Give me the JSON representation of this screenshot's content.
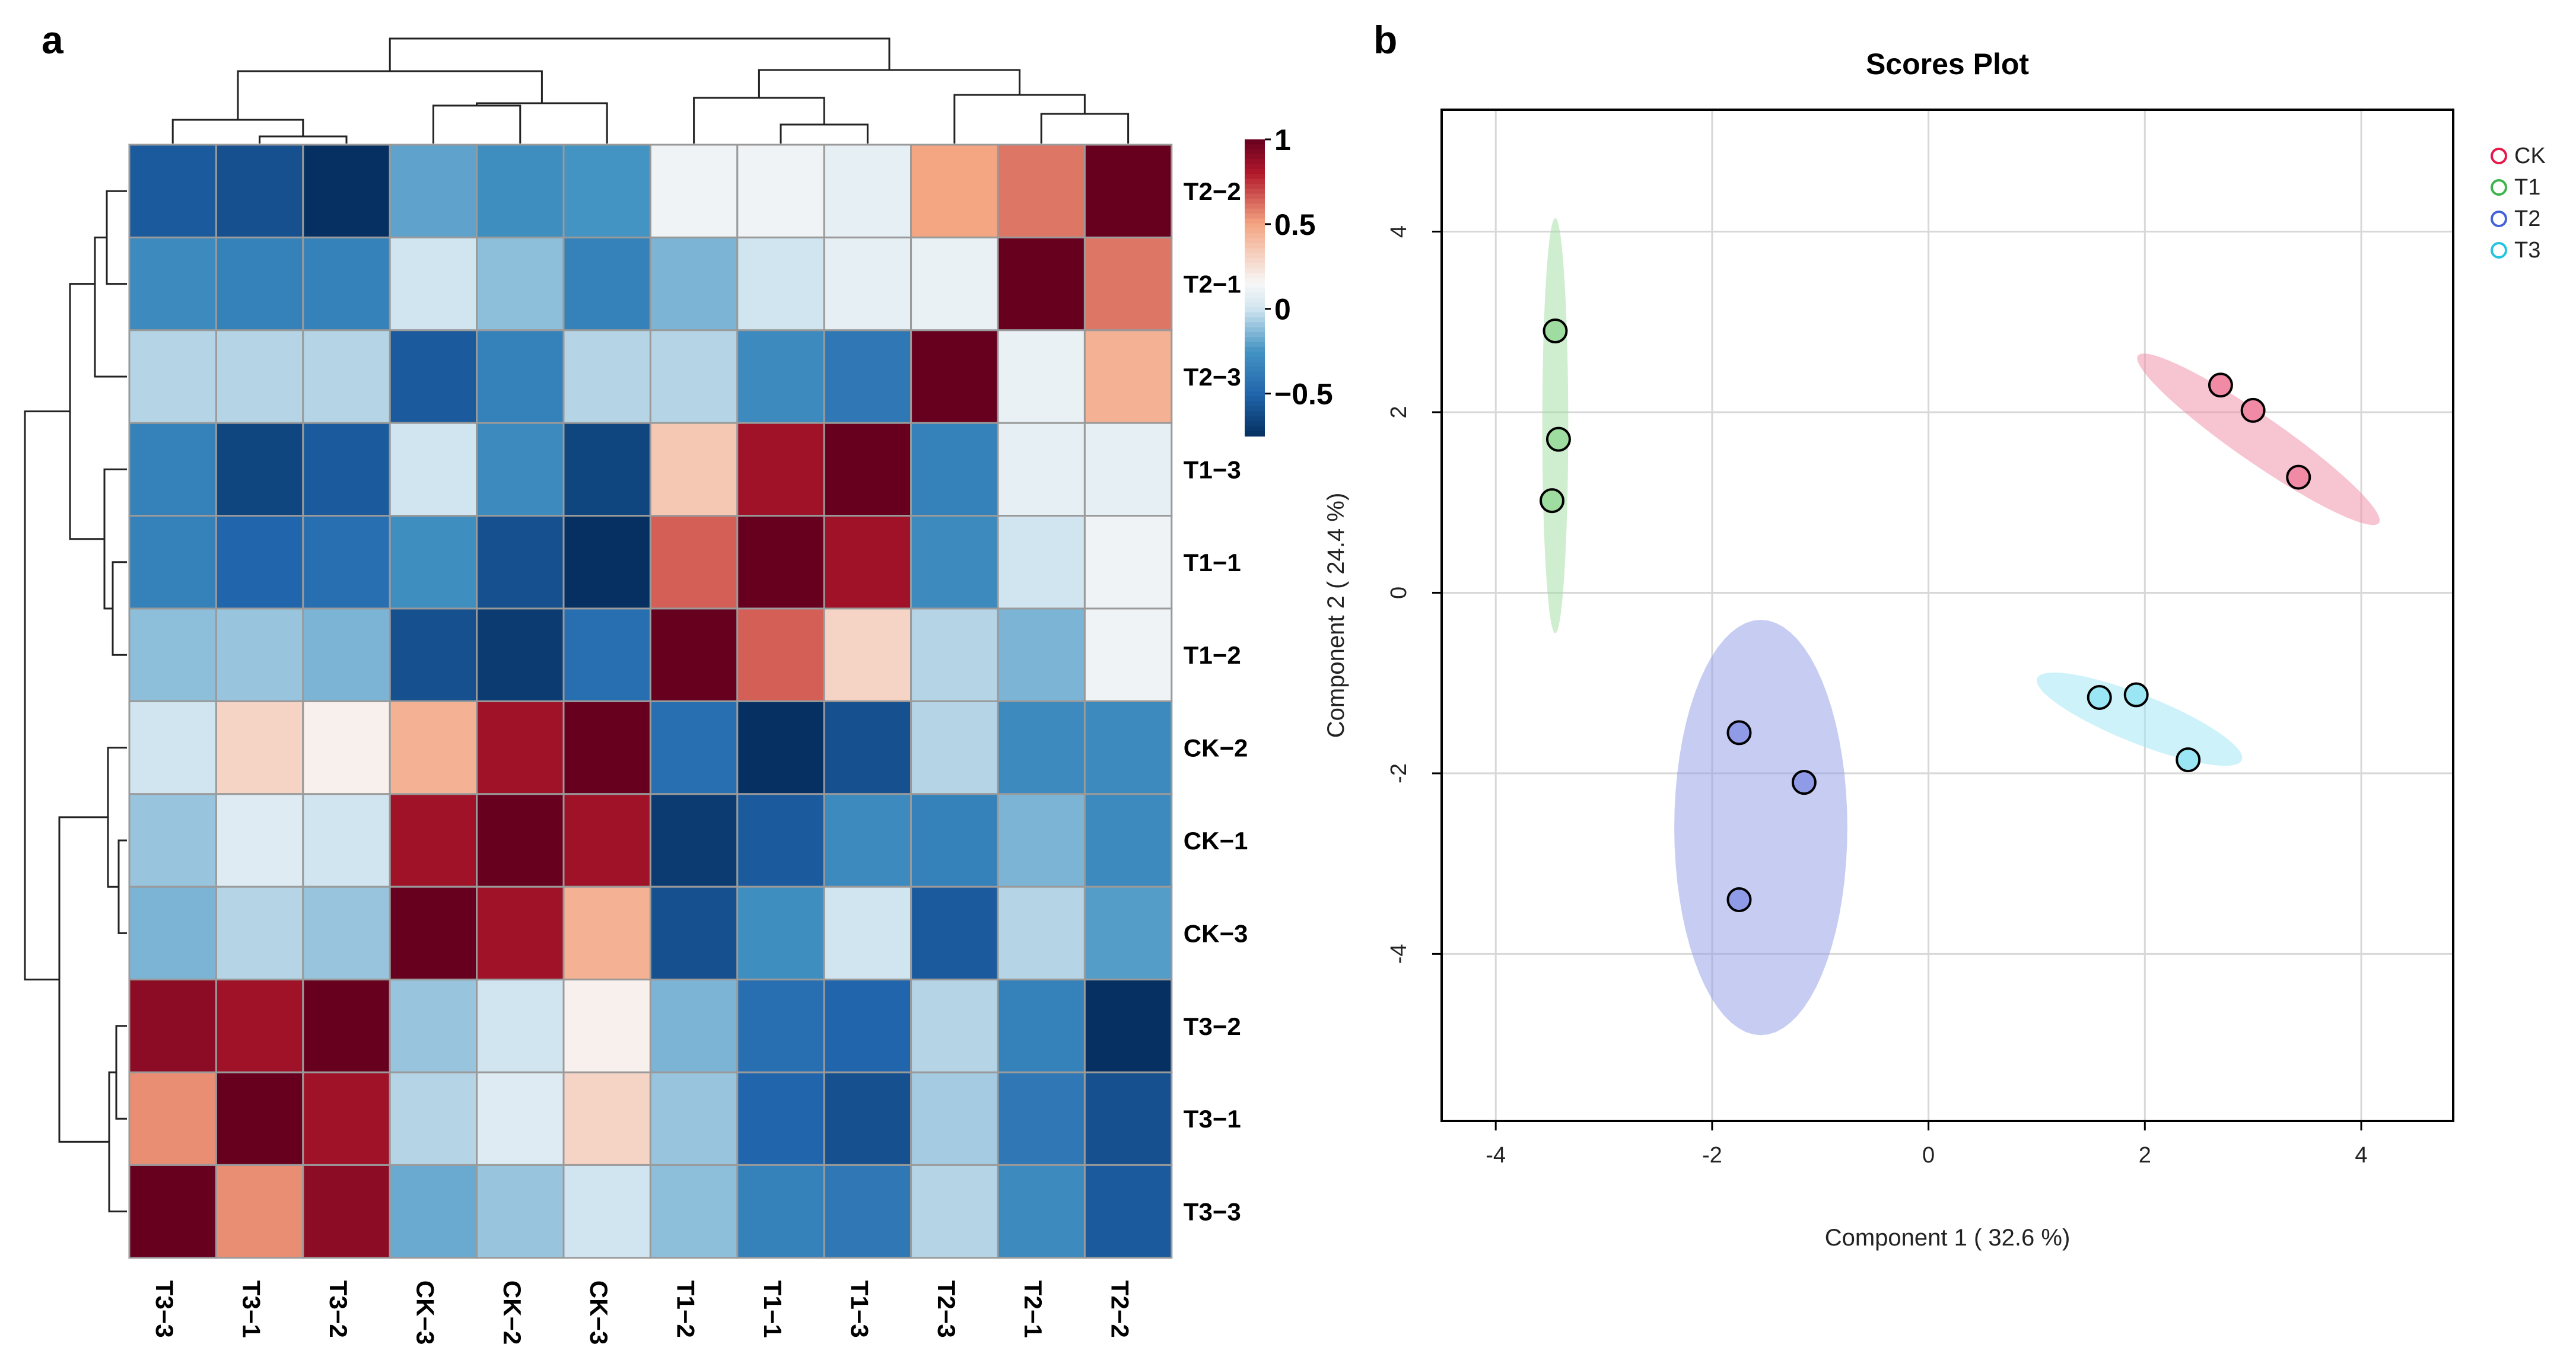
{
  "panels": {
    "a": "a",
    "b": "b"
  },
  "chart_data": [
    {
      "type": "heatmap",
      "title": "",
      "row_labels": [
        "T2−2",
        "T2−1",
        "T2−3",
        "T1−3",
        "T1−1",
        "T1−2",
        "CK−2",
        "CK−1",
        "CK−3",
        "T3−2",
        "T3−1",
        "T3−3"
      ],
      "col_labels": [
        "T3−3",
        "T3−1",
        "T3−2",
        "CK−3",
        "CK−2",
        "CK−3",
        "T1−2",
        "T1−1",
        "T1−3",
        "T2−3",
        "T2−1",
        "T2−2"
      ],
      "values": [
        [
          -0.55,
          -0.6,
          -0.75,
          -0.2,
          -0.28,
          -0.25,
          0.12,
          0.12,
          0.08,
          0.5,
          0.6,
          1.0
        ],
        [
          -0.3,
          -0.35,
          -0.35,
          0.0,
          -0.12,
          -0.35,
          -0.15,
          0.0,
          0.08,
          0.1,
          1.0,
          0.6
        ],
        [
          -0.05,
          -0.05,
          -0.05,
          -0.55,
          -0.35,
          -0.05,
          -0.05,
          -0.3,
          -0.4,
          1.0,
          0.1,
          0.45
        ],
        [
          -0.35,
          -0.65,
          -0.55,
          0.0,
          -0.3,
          -0.65,
          0.35,
          0.85,
          1.0,
          -0.35,
          0.08,
          0.08
        ],
        [
          -0.35,
          -0.5,
          -0.45,
          -0.28,
          -0.6,
          -0.8,
          0.65,
          1.0,
          0.85,
          -0.3,
          0.0,
          0.12
        ],
        [
          -0.12,
          -0.1,
          -0.15,
          -0.6,
          -0.7,
          -0.45,
          1.0,
          0.65,
          0.3,
          -0.05,
          -0.15,
          0.12
        ],
        [
          0.0,
          0.3,
          0.18,
          0.45,
          0.85,
          1.0,
          -0.45,
          -0.8,
          -0.6,
          -0.05,
          -0.3,
          -0.3
        ],
        [
          -0.1,
          0.05,
          0.0,
          0.85,
          1.0,
          0.85,
          -0.7,
          -0.55,
          -0.3,
          -0.35,
          -0.15,
          -0.3
        ],
        [
          -0.15,
          -0.05,
          -0.1,
          1.0,
          0.85,
          0.45,
          -0.6,
          -0.28,
          0.0,
          -0.55,
          -0.05,
          -0.22
        ],
        [
          0.9,
          0.85,
          1.0,
          -0.1,
          0.0,
          0.18,
          -0.15,
          -0.45,
          -0.5,
          -0.05,
          -0.35,
          -0.75
        ],
        [
          0.55,
          1.0,
          0.85,
          -0.05,
          0.05,
          0.3,
          -0.1,
          -0.5,
          -0.6,
          -0.08,
          -0.4,
          -0.6
        ],
        [
          1.0,
          0.55,
          0.9,
          -0.18,
          -0.1,
          0.0,
          -0.12,
          -0.35,
          -0.4,
          -0.05,
          -0.3,
          -0.55
        ]
      ],
      "colorbar": {
        "ticks": [
          1,
          0.5,
          0,
          -0.5
        ],
        "tick_labels": [
          "1",
          "0.5",
          "0",
          "−0.5"
        ],
        "range": [
          -0.75,
          1
        ]
      }
    },
    {
      "type": "scatter",
      "title": "Scores Plot",
      "xlabel": "Component 1 ( 32.6 %)",
      "ylabel": "Component 2 ( 24.4 %)",
      "xlim": [
        -4.5,
        4.85
      ],
      "ylim": [
        -5.85,
        5.35
      ],
      "xticks": [
        -4,
        -2,
        0,
        2,
        4
      ],
      "xtick_labels": [
        "-4",
        "-2",
        "0",
        "2",
        "4"
      ],
      "yticks": [
        -4,
        -2,
        0,
        2,
        4
      ],
      "ytick_labels": [
        "-4",
        "-2",
        "0",
        "2",
        "4"
      ],
      "grid": true,
      "legend_position": "top-right",
      "series": [
        {
          "name": "CK",
          "color": "#e6194b",
          "fill": "#f08aa5",
          "points": [
            [
              2.7,
              2.3
            ],
            [
              3.0,
              2.02
            ],
            [
              3.42,
              1.28
            ]
          ],
          "ellipse": {
            "cx": 3.05,
            "cy": 1.7,
            "rx": 1.45,
            "ry": 0.24,
            "angle_data_deg": -40
          }
        },
        {
          "name": "T1",
          "color": "#3cb44b",
          "fill": "#9fdc9f",
          "points": [
            [
              -3.45,
              2.9
            ],
            [
              -3.42,
              1.7
            ],
            [
              -3.48,
              1.02
            ]
          ],
          "ellipse": {
            "cx": -3.45,
            "cy": 1.85,
            "rx": 0.12,
            "ry": 2.3,
            "angle_data_deg": 0
          }
        },
        {
          "name": "T2",
          "color": "#4363d8",
          "fill": "#8f9be6",
          "points": [
            [
              -1.75,
              -1.55
            ],
            [
              -1.15,
              -2.1
            ],
            [
              -1.75,
              -3.4
            ]
          ],
          "ellipse": {
            "cx": -1.55,
            "cy": -2.6,
            "rx": 0.8,
            "ry": 2.3,
            "angle_data_deg": 0
          }
        },
        {
          "name": "T3",
          "color": "#22c4e0",
          "fill": "#9be6f5",
          "points": [
            [
              1.58,
              -1.16
            ],
            [
              1.92,
              -1.13
            ],
            [
              2.4,
              -1.85
            ]
          ],
          "ellipse": {
            "cx": 1.95,
            "cy": -1.4,
            "rx": 1.05,
            "ry": 0.26,
            "angle_data_deg": -26
          }
        }
      ]
    }
  ]
}
